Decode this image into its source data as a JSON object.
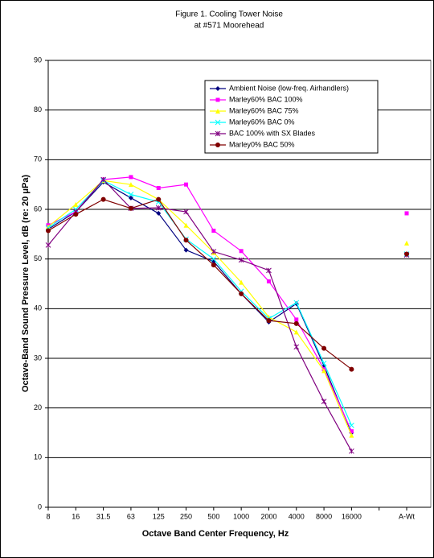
{
  "chart_data": {
    "type": "line",
    "title": "Figure 1. Cooling Tower Noise",
    "subtitle": "at #571 Moorehead",
    "x_label": "Octave Band Center Frequency, Hz",
    "y_label": "Octave-Band Sound Pressure Level, dB (re: 20 μPa)",
    "categories": [
      "8",
      "16",
      "31.5",
      "63",
      "125",
      "250",
      "500",
      "1000",
      "2000",
      "4000",
      "8000",
      "16000",
      null,
      "A-Wt"
    ],
    "ylim": [
      0,
      90
    ],
    "yticks": [
      0,
      10,
      20,
      30,
      40,
      50,
      60,
      70,
      80,
      90
    ],
    "grid": true,
    "series": [
      {
        "name": "Ambient Noise (low-freq. Airhandlers)",
        "color": "#000080",
        "marker": "diamond",
        "values": [
          56,
          59.5,
          65.5,
          62.3,
          59.2,
          51.8,
          49.5,
          43,
          37.3,
          41,
          28.5,
          15,
          null,
          51
        ]
      },
      {
        "name": "Marley60% BAC 100%",
        "color": "#ff00ff",
        "marker": "square",
        "values": [
          56.8,
          59.5,
          66,
          66.5,
          64.3,
          65,
          55.7,
          51.6,
          45.5,
          37.8,
          27.8,
          15.3,
          null,
          59.2
        ]
      },
      {
        "name": "Marley60% BAC 75%",
        "color": "#ffff00",
        "marker": "triangle",
        "values": [
          56.5,
          61,
          65.8,
          65,
          62,
          56.8,
          51.3,
          45.3,
          38.3,
          35.3,
          27.5,
          14.5,
          null,
          53.2
        ]
      },
      {
        "name": "Marley60% BAC 0%",
        "color": "#00ffff",
        "marker": "x",
        "values": [
          56.3,
          60,
          65.8,
          63,
          61.5,
          54,
          50,
          43.5,
          38,
          41.2,
          29,
          16.5,
          null,
          51
        ]
      },
      {
        "name": "BAC 100% with SX Blades",
        "color": "#800080",
        "marker": "star",
        "values": [
          52.8,
          59.5,
          66,
          60.2,
          60.3,
          59.5,
          51.5,
          49.8,
          47.7,
          32.3,
          21.3,
          11.3,
          null,
          50.8
        ]
      },
      {
        "name": "Marley0% BAC 50%",
        "color": "#800000",
        "marker": "circle",
        "values": [
          55.7,
          59,
          62,
          60.2,
          62,
          53.8,
          48.8,
          43,
          37.6,
          37,
          32,
          27.8,
          null,
          51
        ]
      }
    ]
  }
}
